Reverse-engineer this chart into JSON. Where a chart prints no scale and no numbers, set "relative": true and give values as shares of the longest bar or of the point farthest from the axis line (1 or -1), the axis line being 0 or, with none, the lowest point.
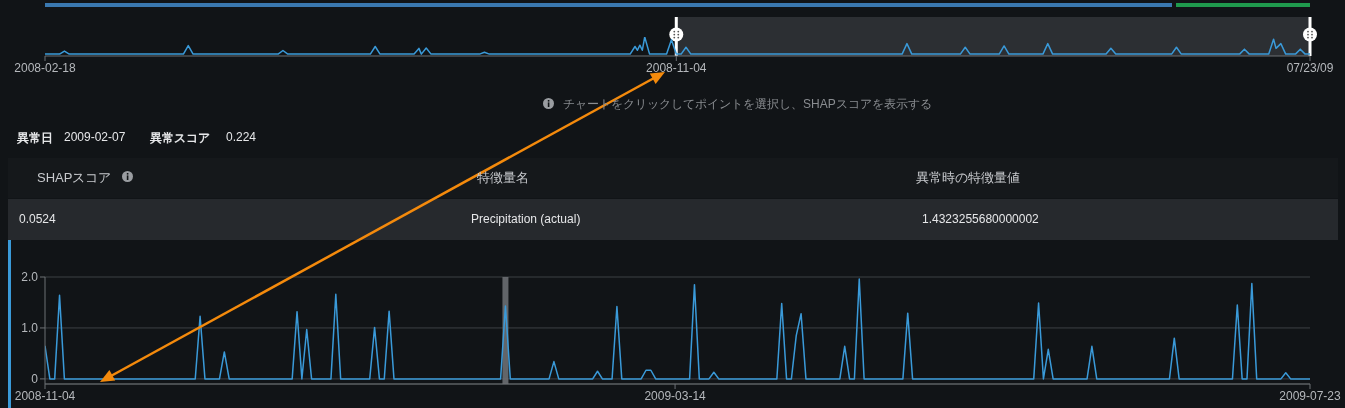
{
  "chart_data": [
    {
      "type": "line",
      "relative": true,
      "color": "#3a9ad9",
      "x": [
        "2008-02-18",
        "2008-02-24",
        "2008-02-26",
        "2008-02-28",
        "2008-04-15",
        "2008-04-17",
        "2008-04-19",
        "2008-05-24",
        "2008-05-26",
        "2008-05-28",
        "2008-07-01",
        "2008-07-03",
        "2008-07-05",
        "2008-07-19",
        "2008-07-21",
        "2008-07-22",
        "2008-07-24",
        "2008-07-26",
        "2008-08-15",
        "2008-08-17",
        "2008-08-19",
        "2008-10-16",
        "2008-10-18",
        "2008-10-19",
        "2008-10-20",
        "2008-10-21",
        "2008-10-22",
        "2008-10-24",
        "2008-10-31",
        "2008-11-02",
        "2008-11-04",
        "2008-11-06",
        "2008-11-08",
        "2008-11-10",
        "2009-02-05",
        "2009-02-07",
        "2009-02-09",
        "2009-03-01",
        "2009-03-03",
        "2009-03-05",
        "2009-03-17",
        "2009-03-19",
        "2009-03-21",
        "2009-04-04",
        "2009-04-06",
        "2009-04-08",
        "2009-04-30",
        "2009-05-02",
        "2009-05-04",
        "2009-05-27",
        "2009-05-29",
        "2009-05-31",
        "2009-06-24",
        "2009-06-26",
        "2009-06-28",
        "2009-07-06",
        "2009-07-08",
        "2009-07-09",
        "2009-07-11",
        "2009-07-13",
        "2009-07-17",
        "2009-07-19",
        "2009-07-21",
        "2009-07-23"
      ],
      "values": [
        0.1,
        0.1,
        0.26,
        0.1,
        0.1,
        0.55,
        0.1,
        0.1,
        0.29,
        0.1,
        0.1,
        0.5,
        0.1,
        0.1,
        0.4,
        0.1,
        0.42,
        0.1,
        0.1,
        0.2,
        0.1,
        0.1,
        0.5,
        0.3,
        0.57,
        0.3,
        1,
        0.1,
        0.1,
        0.86,
        0.1,
        0.1,
        0.46,
        0.1,
        0.1,
        0.65,
        0.1,
        0.1,
        0.46,
        0.1,
        0.1,
        0.53,
        0.1,
        0.1,
        0.65,
        0.1,
        0.1,
        0.41,
        0.1,
        0.1,
        0.46,
        0.1,
        0.1,
        0.36,
        0.1,
        0.1,
        0.88,
        0.4,
        0.65,
        0.1,
        0.1,
        0.36,
        0.1,
        0.1
      ],
      "xlim": [
        "2008-02-18",
        "2009-07-23"
      ],
      "xticks": [
        "2008-02-18",
        "2008-11-04",
        {
          "value": "2009-07-23",
          "label": "07/23/09"
        }
      ],
      "bands": [
        {
          "axis": "x",
          "from": "2008-11-04",
          "to": "2009-07-23",
          "color": "#2c2f33"
        }
      ]
    },
    {
      "type": "other",
      "annotations": [
        "チャートをクリックしてポイントを選択し、SHAPスコアを表示する",
        "異常日",
        "2009-02-07",
        "異常スコア",
        "0.224",
        "SHAPスコア",
        "特徴量名",
        "異常時の特徴量値",
        "0.0524",
        "Precipitation (actual)",
        "1.4323255680000002"
      ]
    },
    {
      "type": "line",
      "color": "#3a9ad9",
      "grid": "y",
      "x": [
        "2008-11-04",
        "2008-11-05",
        "2008-11-06",
        "2008-11-07",
        "2008-11-08",
        "2008-12-05",
        "2008-12-06",
        "2008-12-07",
        "2008-12-10",
        "2008-12-11",
        "2008-12-12",
        "2008-12-25",
        "2008-12-26",
        "2008-12-27",
        "2008-12-28",
        "2008-12-29",
        "2009-01-02",
        "2009-01-03",
        "2009-01-04",
        "2009-01-10",
        "2009-01-11",
        "2009-01-12",
        "2009-01-13",
        "2009-01-14",
        "2009-01-15",
        "2009-02-06",
        "2009-02-07",
        "2009-02-08",
        "2009-02-16",
        "2009-02-17",
        "2009-02-18",
        "2009-02-25",
        "2009-02-26",
        "2009-02-27",
        "2009-03-01",
        "2009-03-02",
        "2009-03-03",
        "2009-03-07",
        "2009-03-08",
        "2009-03-09",
        "2009-03-10",
        "2009-03-17",
        "2009-03-18",
        "2009-03-19",
        "2009-03-21",
        "2009-03-22",
        "2009-03-23",
        "2009-04-04",
        "2009-04-05",
        "2009-04-06",
        "2009-04-07",
        "2009-04-08",
        "2009-04-09",
        "2009-04-10",
        "2009-04-17",
        "2009-04-18",
        "2009-04-19",
        "2009-04-20",
        "2009-04-21",
        "2009-04-22",
        "2009-04-30",
        "2009-05-01",
        "2009-05-02",
        "2009-05-27",
        "2009-05-28",
        "2009-05-29",
        "2009-05-30",
        "2009-05-31",
        "2009-06-07",
        "2009-06-08",
        "2009-06-09",
        "2009-06-24",
        "2009-06-25",
        "2009-06-26",
        "2009-07-07",
        "2009-07-08",
        "2009-07-09",
        "2009-07-10",
        "2009-07-11",
        "2009-07-12",
        "2009-07-17",
        "2009-07-18",
        "2009-07-19",
        "2009-07-23"
      ],
      "values": [
        0.65,
        0,
        0,
        1.64,
        0,
        0,
        1.23,
        0,
        0,
        0.53,
        0,
        0,
        1.32,
        0,
        0.97,
        0,
        0,
        1.66,
        0,
        0,
        1.01,
        0,
        0,
        1.33,
        0,
        0,
        1.43,
        0,
        0,
        0.34,
        0,
        0,
        0.15,
        0,
        0,
        1.42,
        0,
        0,
        0.17,
        0.17,
        0,
        0,
        1.85,
        0,
        0,
        0.13,
        0,
        0,
        1.48,
        0,
        0,
        0.85,
        1.28,
        0,
        0,
        0.64,
        0,
        0,
        1.96,
        0,
        0,
        1.29,
        0,
        0,
        1.49,
        0,
        0.58,
        0,
        0,
        0.64,
        0,
        0,
        0.8,
        0,
        0,
        1.45,
        0,
        0,
        1.87,
        0,
        0,
        0.12,
        0,
        0
      ],
      "xlim": [
        "2008-11-04",
        "2009-07-23"
      ],
      "xticks": [
        "2008-11-04",
        "2009-03-14",
        "2009-07-23"
      ],
      "ylim": [
        -0.1,
        2
      ],
      "yticks": [
        0,
        {
          "value": 1,
          "label": "1.0"
        },
        {
          "value": 2,
          "label": "2.0"
        }
      ],
      "ref_lines": [
        {
          "axis": "x",
          "value": "2009-02-07",
          "color": "#6b6e72"
        }
      ]
    }
  ]
}
